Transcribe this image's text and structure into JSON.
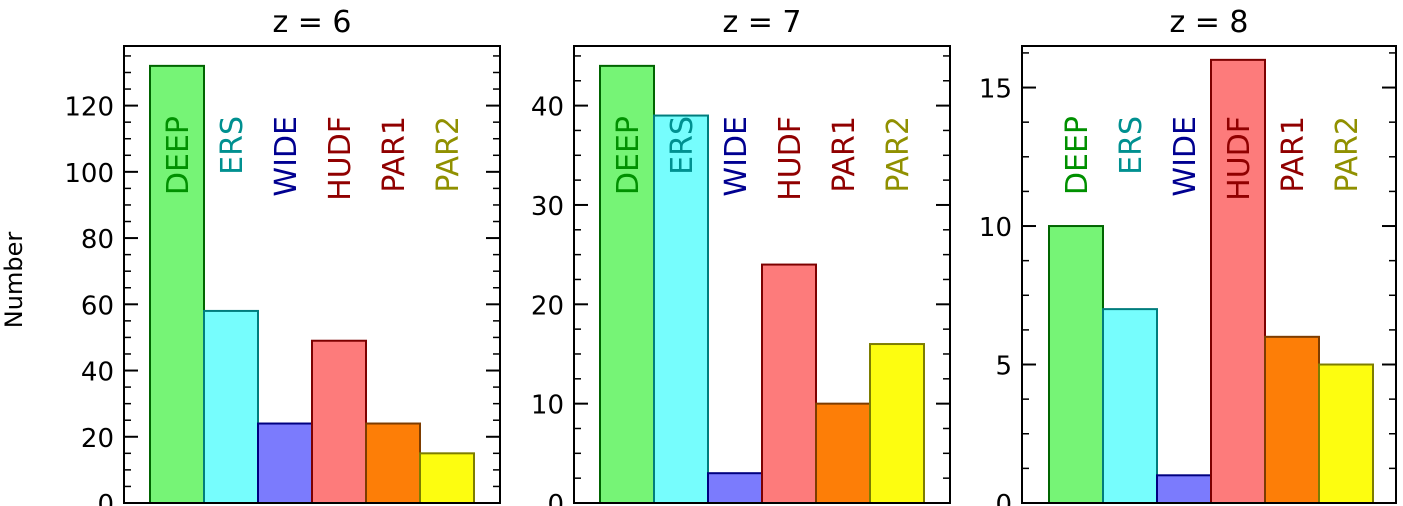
{
  "figure": {
    "ylabel": "Number"
  },
  "chart_data": [
    {
      "type": "bar",
      "title": "z = 6",
      "ylabel": "Number",
      "categories": [
        "DEEP",
        "ERS",
        "WIDE",
        "HUDF",
        "PAR1",
        "PAR2"
      ],
      "values": [
        132,
        58,
        24,
        49,
        24,
        15
      ],
      "ylim": [
        0,
        138
      ],
      "yticks": [
        0,
        20,
        40,
        60,
        80,
        100,
        120
      ],
      "grid": false
    },
    {
      "type": "bar",
      "title": "z = 7",
      "categories": [
        "DEEP",
        "ERS",
        "WIDE",
        "HUDF",
        "PAR1",
        "PAR2"
      ],
      "values": [
        44,
        39,
        3,
        24,
        10,
        16
      ],
      "ylim": [
        0,
        46
      ],
      "yticks": [
        0,
        10,
        20,
        30,
        40
      ],
      "grid": false
    },
    {
      "type": "bar",
      "title": "z = 8",
      "categories": [
        "DEEP",
        "ERS",
        "WIDE",
        "HUDF",
        "PAR1",
        "PAR2"
      ],
      "values": [
        10,
        7,
        1,
        16,
        6,
        5
      ],
      "ylim": [
        0,
        16.5
      ],
      "yticks": [
        0,
        5,
        10,
        15
      ],
      "grid": false
    }
  ],
  "colors": {
    "bar_fills": [
      "#76f476",
      "#76fdfd",
      "#7b7bfd",
      "#fd7b7b",
      "#fd7e07",
      "#fdfd10"
    ],
    "bar_strokes": [
      "#006400",
      "#007d7d",
      "#000080",
      "#7d0000",
      "#7d3c00",
      "#7d7d00"
    ],
    "label_colors": [
      "#009000",
      "#009090",
      "#000090",
      "#900000",
      "#900000",
      "#909000"
    ]
  }
}
